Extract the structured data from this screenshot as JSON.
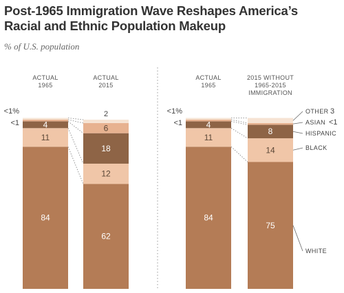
{
  "title": "Post-1965 Immigration Wave Reshapes America’s Racial and Ethnic Population Makeup",
  "subtitle": "% of U.S. population",
  "colors": {
    "White": "#b47c56",
    "Black": "#f0c6a8",
    "Hispanic": "#8e6446",
    "Asian": "#e7b290",
    "Other": "#f6e3d3"
  },
  "chart_data": [
    {
      "type": "bar",
      "stacked": true,
      "categories": [
        "ACTUAL 1965",
        "ACTUAL 2015"
      ],
      "series": [
        {
          "name": "White",
          "values": [
            84,
            62
          ]
        },
        {
          "name": "Black",
          "values": [
            11,
            12
          ]
        },
        {
          "name": "Hispanic",
          "values": [
            4,
            18
          ]
        },
        {
          "name": "Asian",
          "values": [
            1,
            6
          ]
        },
        {
          "name": "Other",
          "values": [
            1,
            2
          ]
        }
      ],
      "value_labels": [
        [
          "84",
          "11",
          "4",
          "<1",
          "<1%"
        ],
        [
          "62",
          "12",
          "18",
          "6",
          "2"
        ]
      ]
    },
    {
      "type": "bar",
      "stacked": true,
      "categories": [
        "ACTUAL 1965",
        "2015 WITHOUT 1965-2015 IMMIGRATION"
      ],
      "series": [
        {
          "name": "White",
          "values": [
            84,
            75
          ]
        },
        {
          "name": "Black",
          "values": [
            11,
            14
          ]
        },
        {
          "name": "Hispanic",
          "values": [
            4,
            8
          ]
        },
        {
          "name": "Asian",
          "values": [
            1,
            1
          ]
        },
        {
          "name": "Other",
          "values": [
            1,
            3
          ]
        }
      ],
      "value_labels": [
        [
          "84",
          "11",
          "4",
          "<1",
          "<1%"
        ],
        [
          "75",
          "14",
          "8",
          "<1",
          "3"
        ]
      ],
      "legend": [
        {
          "label": "WHITE",
          "series": "White"
        },
        {
          "label": "BLACK",
          "series": "Black"
        },
        {
          "label": "HISPANIC",
          "series": "Hispanic"
        },
        {
          "label": "ASIAN",
          "value": "<1",
          "series": "Asian"
        },
        {
          "label": "OTHER",
          "value": "3",
          "series": "Other"
        }
      ],
      "legend_placement": "right"
    }
  ],
  "column_headers": [
    [
      "ACTUAL",
      "1965"
    ],
    [
      "ACTUAL",
      "2015"
    ],
    [
      "ACTUAL",
      "1965"
    ],
    [
      "2015 WITHOUT",
      "1965-2015",
      "IMMIGRATION"
    ]
  ]
}
